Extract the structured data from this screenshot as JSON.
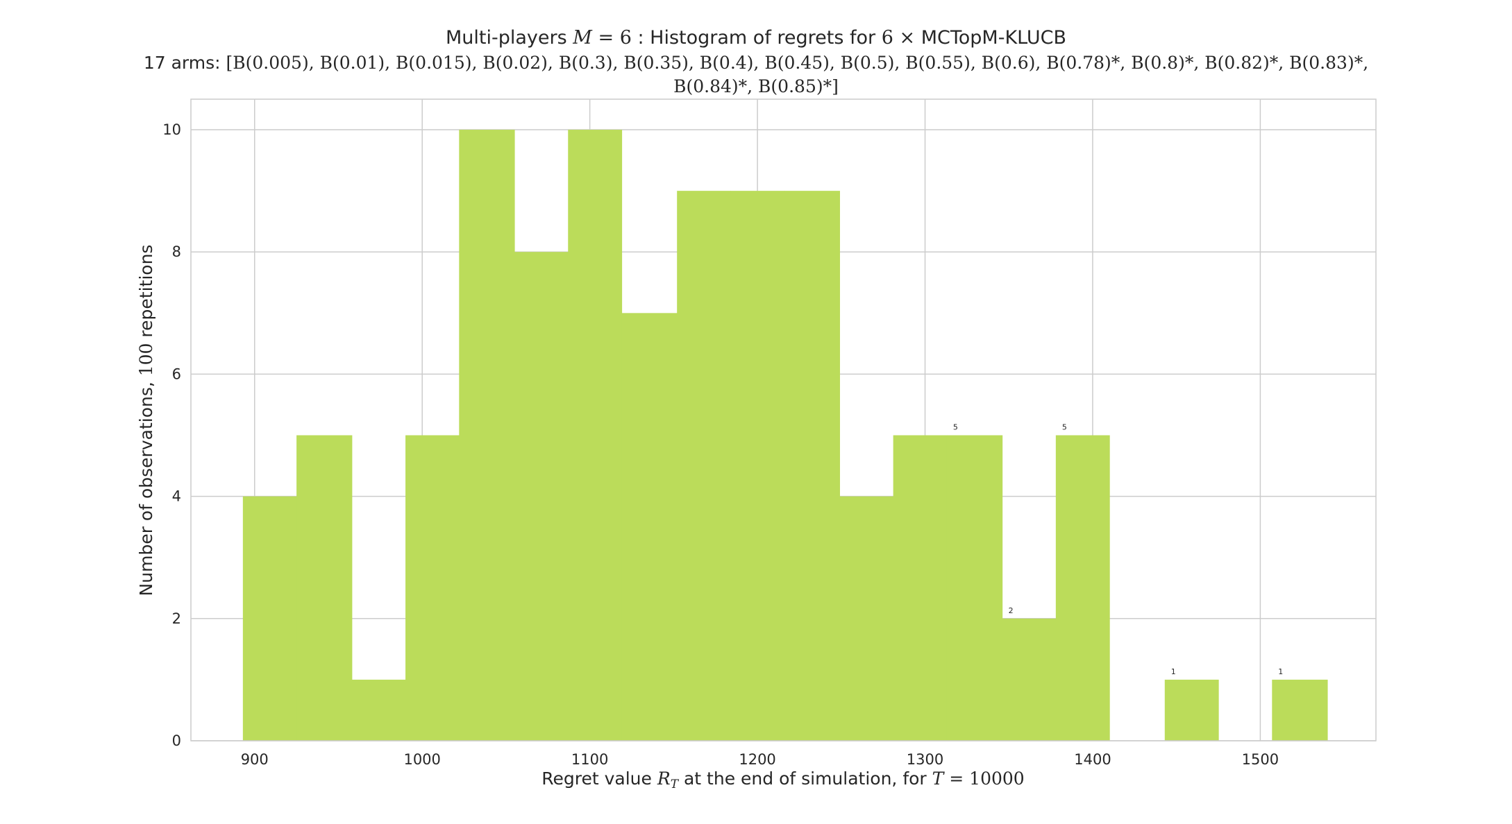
{
  "chart_data": {
    "type": "histogram",
    "title": {
      "line1_prefix": "Multi-players ",
      "line1_math_m": "M",
      "line1_math_eq": " = 6",
      "line1_mid": " : Histogram of regrets for ",
      "line1_math_times": "6 ×",
      "line1_suffix": "  MCTopM-KLUCB",
      "line2_prefix": "17 arms: ",
      "line2_math": "[B(0.005), B(0.01), B(0.015), B(0.02), B(0.3), B(0.35), B(0.4), B(0.45), B(0.5), B(0.55), B(0.6), B(0.78)*, B(0.8)*, B(0.82)*, B(0.83)*,",
      "line3_math": "B(0.84)*, B(0.85)*]"
    },
    "xlabel": {
      "prefix": "Regret value ",
      "math_r": "R",
      "math_t": "T",
      "mid": " at the end of simulation, for ",
      "math_tt": "T",
      "math_eq": " = 10000"
    },
    "ylabel": {
      "prefix": "Number of observations, ",
      "math": "100",
      "suffix": " repetitions"
    },
    "xlim": [
      862,
      1569
    ],
    "ylim": [
      0,
      10.5
    ],
    "x_ticks": [
      900,
      1000,
      1100,
      1200,
      1300,
      1400,
      1500
    ],
    "y_ticks": [
      0,
      2,
      4,
      6,
      8,
      10
    ],
    "bar_color": "#bbdc5a",
    "bins": [
      {
        "x0": 893,
        "x1": 925,
        "count": 4
      },
      {
        "x0": 925,
        "x1": 958,
        "count": 5
      },
      {
        "x0": 958,
        "x1": 990,
        "count": 1
      },
      {
        "x0": 990,
        "x1": 1022,
        "count": 5
      },
      {
        "x0": 1022,
        "x1": 1055,
        "count": 10
      },
      {
        "x0": 1055,
        "x1": 1087,
        "count": 8
      },
      {
        "x0": 1087,
        "x1": 1119,
        "count": 10
      },
      {
        "x0": 1119,
        "x1": 1152,
        "count": 7
      },
      {
        "x0": 1152,
        "x1": 1184,
        "count": 9
      },
      {
        "x0": 1184,
        "x1": 1216,
        "count": 9
      },
      {
        "x0": 1216,
        "x1": 1249,
        "count": 9
      },
      {
        "x0": 1249,
        "x1": 1281,
        "count": 4
      },
      {
        "x0": 1281,
        "x1": 1313,
        "count": 5
      },
      {
        "x0": 1313,
        "x1": 1346,
        "count": 5
      },
      {
        "x0": 1346,
        "x1": 1378,
        "count": 2
      },
      {
        "x0": 1378,
        "x1": 1410,
        "count": 5
      },
      {
        "x0": 1410,
        "x1": 1443,
        "count": 0
      },
      {
        "x0": 1443,
        "x1": 1475,
        "count": 1
      },
      {
        "x0": 1475,
        "x1": 1507,
        "count": 0
      },
      {
        "x0": 1507,
        "x1": 1540,
        "count": 1
      }
    ],
    "bar_annotations": [
      {
        "x": 1313,
        "count": 5,
        "text": "5"
      },
      {
        "x": 1346,
        "count": 2,
        "text": "2"
      },
      {
        "x": 1378,
        "count": 5,
        "text": "5"
      },
      {
        "x": 1443,
        "count": 1,
        "text": "1"
      },
      {
        "x": 1507,
        "count": 1,
        "text": "1"
      }
    ],
    "grid": true,
    "legend": "none"
  }
}
